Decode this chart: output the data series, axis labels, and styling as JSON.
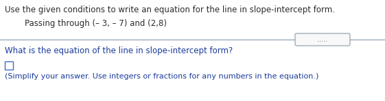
{
  "line1": "Use the given conditions to write an equation for the line in slope-intercept form.",
  "line2": "Passing through (– 3, – 7) and (2,8)",
  "line3": "What is the equation of the line in slope-intercept form?",
  "line4": "(Simplify your answer. Use integers or fractions for any numbers in the equation.)",
  "dots": ".....",
  "bg_color": "#ffffff",
  "text_color_black": "#2a2a2a",
  "text_color_blue": "#1a3a9a",
  "divider_color": "#8899aa",
  "box_edge_color": "#4466cc",
  "font_size_main": 8.5,
  "font_size_sub": 8.0,
  "dots_font_size": 7.0
}
